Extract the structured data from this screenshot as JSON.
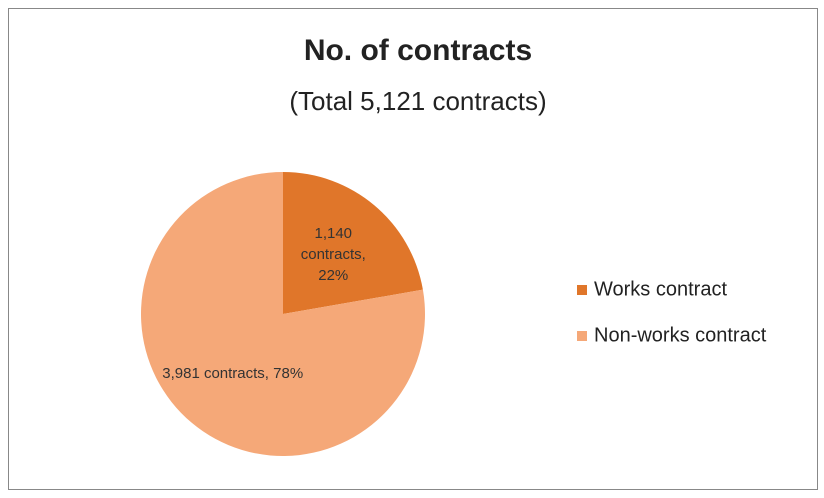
{
  "chart_data": {
    "type": "pie",
    "title": "No. of contracts",
    "subtitle": "(Total 5,121 contracts)",
    "categories": [
      "Works contract",
      "Non-works contract"
    ],
    "values": [
      1140,
      3981
    ],
    "value_labels": [
      "1,140 contracts, 22%",
      "3,981 contracts, 78%"
    ],
    "colors": [
      "#e0762a",
      "#f5a878"
    ],
    "legend": "right"
  }
}
